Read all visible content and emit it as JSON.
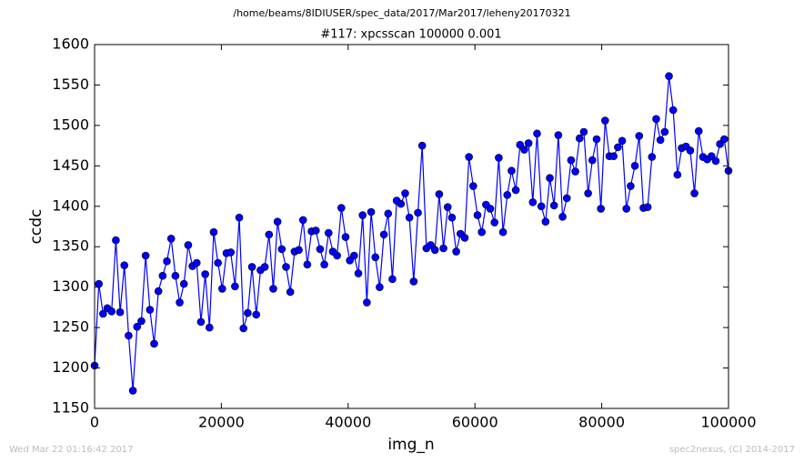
{
  "chart_data": {
    "type": "line",
    "suptitle": "/home/beams/8IDIUSER/spec_data/2017/Mar2017/leheny20170321",
    "title": "#117: xpcsscan 100000 0.001",
    "xlabel": "img_n",
    "ylabel": "ccdc",
    "footer_left": "Wed Mar 22 01:16:42 2017",
    "footer_right": "spec2nexus, (C) 2014-2017",
    "color": "#0000ff",
    "xlim": [
      0,
      100000
    ],
    "xticks": [
      0,
      20000,
      40000,
      60000,
      80000,
      100000
    ],
    "ylim": [
      1150,
      1600
    ],
    "yticks": [
      1150,
      1200,
      1250,
      1300,
      1350,
      1400,
      1450,
      1500,
      1550,
      1600
    ],
    "x": [
      0,
      671,
      1342,
      2013,
      2685,
      3356,
      4027,
      4698,
      5369,
      6040,
      6711,
      7383,
      8054,
      8725,
      9396,
      10067,
      10738,
      11409,
      12081,
      12752,
      13423,
      14094,
      14765,
      15436,
      16107,
      16779,
      17450,
      18121,
      18792,
      19463,
      20134,
      20805,
      21477,
      22148,
      22819,
      23490,
      24161,
      24832,
      25503,
      26174,
      26846,
      27517,
      28188,
      28859,
      29530,
      30201,
      30872,
      31544,
      32215,
      32886,
      33557,
      34228,
      34899,
      35570,
      36242,
      36913,
      37584,
      38255,
      38926,
      39597,
      40268,
      40940,
      41611,
      42282,
      42953,
      43624,
      44295,
      44966,
      45638,
      46309,
      46980,
      47651,
      48322,
      48993,
      49664,
      50336,
      51007,
      51678,
      52349,
      53020,
      53691,
      54362,
      55034,
      55705,
      56376,
      57047,
      57718,
      58389,
      59060,
      59732,
      60403,
      61074,
      61745,
      62416,
      63087,
      63758,
      64430,
      65101,
      65772,
      66443,
      67114,
      67785,
      68456,
      69128,
      69799,
      70470,
      71141,
      71812,
      72483,
      73154,
      73826,
      74497,
      75168,
      75839,
      76510,
      77181,
      77852,
      78523,
      79195,
      79866,
      80537,
      81208,
      81879,
      82550,
      83221,
      83893,
      84564,
      85235,
      85906,
      86577,
      87248,
      87919,
      88591,
      89262,
      89933,
      90604,
      91275,
      91946,
      92617,
      93289,
      93960,
      94631,
      95302,
      95973,
      96644,
      97315,
      97987,
      98658,
      99329,
      100000
    ],
    "values": [
      1203,
      1304,
      1267,
      1274,
      1270,
      1358,
      1269,
      1327,
      1240,
      1172,
      1251,
      1258,
      1339,
      1272,
      1230,
      1295,
      1314,
      1332,
      1360,
      1314,
      1281,
      1304,
      1352,
      1326,
      1330,
      1257,
      1316,
      1250,
      1368,
      1330,
      1298,
      1342,
      1343,
      1301,
      1386,
      1249,
      1268,
      1325,
      1266,
      1321,
      1325,
      1365,
      1298,
      1381,
      1347,
      1325,
      1294,
      1344,
      1346,
      1383,
      1328,
      1369,
      1370,
      1347,
      1328,
      1367,
      1344,
      1339,
      1398,
      1362,
      1333,
      1339,
      1317,
      1389,
      1281,
      1393,
      1337,
      1300,
      1365,
      1391,
      1310,
      1407,
      1403,
      1416,
      1386,
      1307,
      1392,
      1475,
      1348,
      1352,
      1346,
      1415,
      1348,
      1399,
      1386,
      1344,
      1366,
      1361,
      1461,
      1425,
      1389,
      1368,
      1402,
      1397,
      1380,
      1460,
      1368,
      1414,
      1444,
      1420,
      1476,
      1470,
      1478,
      1405,
      1490,
      1400,
      1381,
      1435,
      1401,
      1488,
      1387,
      1410,
      1457,
      1443,
      1484,
      1492,
      1416,
      1457,
      1483,
      1397,
      1506,
      1462,
      1462,
      1473,
      1481,
      1397,
      1425,
      1450,
      1487,
      1398,
      1399,
      1461,
      1508,
      1482,
      1492,
      1561,
      1519,
      1439,
      1472,
      1474,
      1469,
      1416,
      1493,
      1461,
      1458,
      1462,
      1456,
      1477,
      1483,
      1444
    ]
  }
}
